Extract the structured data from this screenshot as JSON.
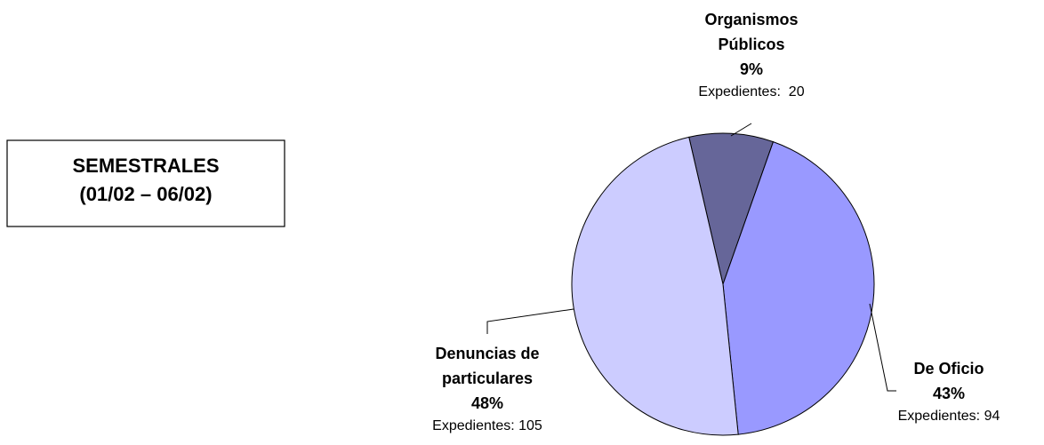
{
  "box": {
    "lines": [
      "SEMESTRALES",
      "(01/02 – 06/02)"
    ]
  },
  "chart_data": {
    "type": "pie",
    "categories": [
      "Organismos Públicos",
      "De Oficio",
      "Denuncias de particulares"
    ],
    "values": [
      9,
      43,
      48
    ],
    "value_labels": [
      "9%",
      "43%",
      "48%"
    ],
    "colors": [
      "#666699",
      "#9999ff",
      "#ccccff"
    ],
    "count_label": "Expedientes:",
    "counts": [
      20,
      94,
      105
    ]
  }
}
